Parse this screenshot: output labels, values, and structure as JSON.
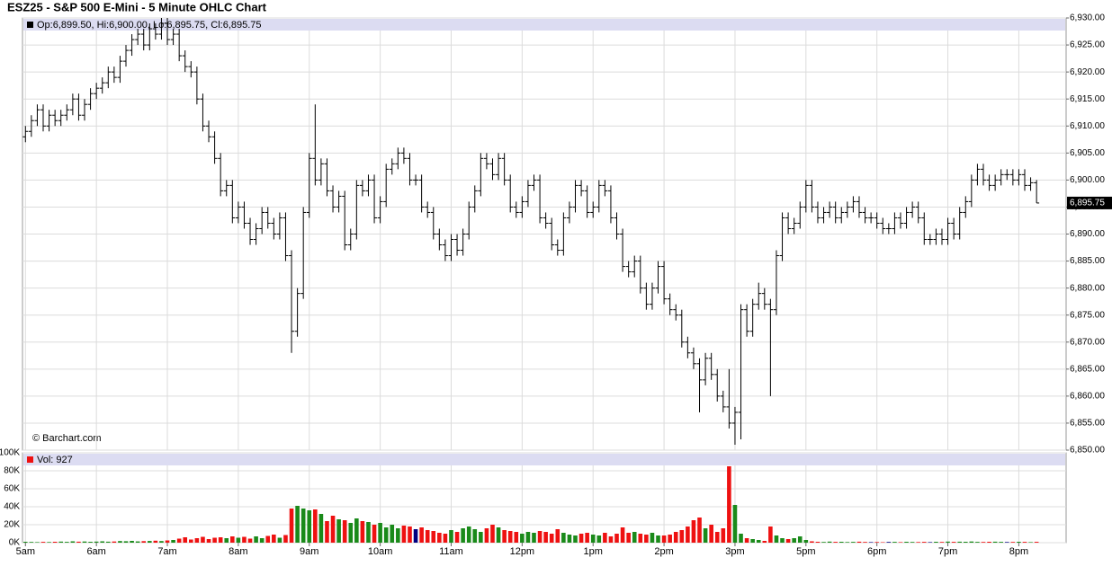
{
  "chart_data": {
    "type": "ohlc",
    "title": "ESZ25 - S&P 500 E-Mini - 5 Minute OHLC Chart",
    "legend_text": "Op:6,899.50, Hi:6,900.00, Lo:6,895.75, Cl:6,895.75",
    "watermark": "© Barchart.com",
    "bar_color": "#000000",
    "grid": true,
    "last_price": {
      "value": 6895.75,
      "label": "6,895.75"
    },
    "xlim": [
      -0.5,
      176
    ],
    "xticks": [
      {
        "value": 0,
        "label": "5am"
      },
      {
        "value": 12,
        "label": "6am"
      },
      {
        "value": 24,
        "label": "7am"
      },
      {
        "value": 36,
        "label": "8am"
      },
      {
        "value": 48,
        "label": "9am"
      },
      {
        "value": 60,
        "label": "10am"
      },
      {
        "value": 72,
        "label": "11am"
      },
      {
        "value": 84,
        "label": "12pm"
      },
      {
        "value": 96,
        "label": "1pm"
      },
      {
        "value": 108,
        "label": "2pm"
      },
      {
        "value": 120,
        "label": "3pm"
      },
      {
        "value": 132,
        "label": "5pm"
      },
      {
        "value": 144,
        "label": "6pm"
      },
      {
        "value": 156,
        "label": "7pm"
      },
      {
        "value": 168,
        "label": "8pm"
      }
    ],
    "ylim": [
      6850,
      6930
    ],
    "yticks": [
      {
        "value": 6850,
        "label": "6,850.00"
      },
      {
        "value": 6855,
        "label": "6,855.00"
      },
      {
        "value": 6860,
        "label": "6,860.00"
      },
      {
        "value": 6865,
        "label": "6,865.00"
      },
      {
        "value": 6870,
        "label": "6,870.00"
      },
      {
        "value": 6875,
        "label": "6,875.00"
      },
      {
        "value": 6880,
        "label": "6,880.00"
      },
      {
        "value": 6885,
        "label": "6,885.00"
      },
      {
        "value": 6890,
        "label": "6,890.00"
      },
      {
        "value": 6895,
        "label": "6,895.00"
      },
      {
        "value": 6900,
        "label": "6,900.00"
      },
      {
        "value": 6905,
        "label": "6,905.00"
      },
      {
        "value": 6910,
        "label": "6,910.00"
      },
      {
        "value": 6915,
        "label": "6,915.00"
      },
      {
        "value": 6920,
        "label": "6,920.00"
      },
      {
        "value": 6925,
        "label": "6,925.00"
      },
      {
        "value": 6930,
        "label": "6,930.00"
      }
    ],
    "open": [
      6908,
      6909,
      6911,
      6913,
      6910,
      6912,
      6911,
      6912,
      6913,
      6915,
      6912,
      6914,
      6916,
      6917,
      6918,
      6920,
      6919,
      6922,
      6924,
      6926,
      6927,
      6925,
      6928,
      6927,
      6929,
      6926,
      6927,
      6923,
      6921,
      6920,
      6915,
      6910,
      6908,
      6904,
      6898,
      6899,
      6893,
      6895,
      6892,
      6889,
      6891,
      6894,
      6892,
      6890,
      6893,
      6886,
      6872,
      6879,
      6894,
      6904,
      6900,
      6903,
      6898,
      6895,
      6897,
      6888,
      6890,
      6899,
      6898,
      6900,
      6893,
      6896,
      6902,
      6903,
      6905,
      6904,
      6900,
      6900,
      6895,
      6894,
      6890,
      6888,
      6886,
      6889,
      6887,
      6890,
      6895,
      6898,
      6904,
      6903,
      6901,
      6904,
      6900,
      6895,
      6894,
      6896,
      6899,
      6900,
      6893,
      6892,
      6888,
      6887,
      6893,
      6895,
      6899,
      6898,
      6894,
      6895,
      6899,
      6898,
      6893,
      6890,
      6884,
      6883,
      6885,
      6880,
      6877,
      6880,
      6884,
      6878,
      6876,
      6875,
      6870,
      6868,
      6866,
      6863,
      6867,
      6864,
      6860,
      6858,
      6855,
      6857,
      6876,
      6872,
      6877,
      6879,
      6877,
      6876,
      6886,
      6893,
      6891,
      6892,
      6895,
      6899,
      6895,
      6893,
      6894,
      6895,
      6893,
      6894,
      6895,
      6896,
      6894,
      6893,
      6893,
      6892,
      6891,
      6891,
      6893,
      6892,
      6894,
      6895,
      6893,
      6889,
      6889,
      6890,
      6889,
      6892,
      6890,
      6894,
      6896,
      6900,
      6902,
      6900,
      6899,
      6900,
      6901,
      6901,
      6900,
      6901,
      6899,
      6899.5
    ],
    "high": [
      6910,
      6912,
      6914,
      6914,
      6913,
      6913,
      6913,
      6914,
      6916,
      6916,
      6915,
      6917,
      6918,
      6919,
      6921,
      6921,
      6923,
      6925,
      6927,
      6928,
      6928,
      6929,
      6929,
      6930,
      6930,
      6928,
      6928,
      6924,
      6922,
      6921,
      6916,
      6911,
      6909,
      6905,
      6900,
      6900,
      6896,
      6896,
      6893,
      6892,
      6895,
      6895,
      6893,
      6894,
      6894,
      6887,
      6880,
      6895,
      6905,
      6914,
      6904,
      6904,
      6899,
      6898,
      6898,
      6891,
      6900,
      6900,
      6901,
      6901,
      6897,
      6903,
      6904,
      6906,
      6906,
      6905,
      6901,
      6901,
      6896,
      6895,
      6891,
      6889,
      6890,
      6890,
      6891,
      6896,
      6899,
      6905,
      6905,
      6904,
      6905,
      6905,
      6901,
      6896,
      6897,
      6900,
      6901,
      6901,
      6894,
      6893,
      6889,
      6894,
      6896,
      6900,
      6900,
      6899,
      6896,
      6900,
      6900,
      6899,
      6894,
      6891,
      6885,
      6886,
      6886,
      6881,
      6881,
      6885,
      6885,
      6879,
      6877,
      6876,
      6871,
      6869,
      6867,
      6868,
      6868,
      6865,
      6861,
      6865,
      6858,
      6877,
      6877,
      6878,
      6881,
      6880,
      6878,
      6887,
      6894,
      6894,
      6893,
      6896,
      6900,
      6900,
      6896,
      6895,
      6896,
      6896,
      6895,
      6896,
      6897,
      6897,
      6895,
      6894,
      6894,
      6893,
      6892,
      6894,
      6894,
      6895,
      6896,
      6896,
      6894,
      6890,
      6891,
      6891,
      6893,
      6893,
      6895,
      6897,
      6901,
      6903,
      6903,
      6901,
      6901,
      6902,
      6902,
      6902,
      6902,
      6902,
      6900.5,
      6900
    ],
    "low": [
      6907,
      6908,
      6910,
      6909,
      6909,
      6910,
      6910,
      6911,
      6912,
      6911,
      6911,
      6913,
      6915,
      6916,
      6917,
      6918,
      6918,
      6921,
      6923,
      6925,
      6924,
      6924,
      6926,
      6926,
      6925,
      6925,
      6922,
      6920,
      6919,
      6914,
      6909,
      6907,
      6903,
      6897,
      6897,
      6892,
      6892,
      6891,
      6888,
      6888,
      6890,
      6891,
      6889,
      6889,
      6885,
      6868,
      6871,
      6878,
      6893,
      6899,
      6899,
      6897,
      6894,
      6894,
      6887,
      6887,
      6889,
      6897,
      6897,
      6892,
      6892,
      6895,
      6901,
      6902,
      6903,
      6899,
      6899,
      6894,
      6893,
      6889,
      6887,
      6885,
      6885,
      6886,
      6886,
      6889,
      6894,
      6897,
      6902,
      6900,
      6900,
      6899,
      6894,
      6893,
      6893,
      6895,
      6898,
      6892,
      6891,
      6887,
      6886,
      6886,
      6892,
      6894,
      6897,
      6893,
      6893,
      6894,
      6897,
      6892,
      6889,
      6883,
      6882,
      6882,
      6879,
      6876,
      6876,
      6879,
      6877,
      6875,
      6874,
      6869,
      6867,
      6865,
      6857,
      6862,
      6863,
      6859,
      6857,
      6854,
      6851,
      6852,
      6871,
      6871,
      6876,
      6876,
      6860,
      6875,
      6885,
      6890,
      6890,
      6891,
      6894,
      6894,
      6892,
      6892,
      6893,
      6892,
      6892,
      6893,
      6894,
      6893,
      6892,
      6892,
      6891,
      6890,
      6890,
      6890,
      6891,
      6891,
      6893,
      6892,
      6888,
      6888,
      6888,
      6888,
      6888,
      6889,
      6889,
      6893,
      6895,
      6899,
      6899,
      6898,
      6898,
      6899,
      6900,
      6899,
      6899,
      6898,
      6898,
      6895.75
    ],
    "close": [
      6909,
      6911,
      6913,
      6910,
      6912,
      6911,
      6912,
      6913,
      6915,
      6912,
      6914,
      6916,
      6917,
      6918,
      6920,
      6919,
      6922,
      6924,
      6926,
      6927,
      6925,
      6928,
      6927,
      6929,
      6926,
      6927,
      6923,
      6921,
      6920,
      6915,
      6910,
      6908,
      6904,
      6898,
      6899,
      6893,
      6895,
      6892,
      6889,
      6891,
      6894,
      6892,
      6890,
      6893,
      6886,
      6872,
      6879,
      6894,
      6904,
      6900,
      6903,
      6898,
      6895,
      6897,
      6888,
      6890,
      6899,
      6898,
      6900,
      6893,
      6896,
      6902,
      6903,
      6905,
      6904,
      6900,
      6900,
      6895,
      6894,
      6890,
      6888,
      6886,
      6889,
      6887,
      6890,
      6895,
      6898,
      6904,
      6903,
      6901,
      6904,
      6900,
      6895,
      6894,
      6896,
      6899,
      6900,
      6893,
      6892,
      6888,
      6887,
      6893,
      6895,
      6899,
      6898,
      6894,
      6895,
      6899,
      6898,
      6893,
      6890,
      6884,
      6883,
      6885,
      6880,
      6877,
      6880,
      6884,
      6878,
      6876,
      6875,
      6870,
      6868,
      6866,
      6863,
      6867,
      6864,
      6860,
      6858,
      6855,
      6857,
      6876,
      6872,
      6877,
      6879,
      6877,
      6876,
      6886,
      6893,
      6891,
      6892,
      6895,
      6899,
      6895,
      6893,
      6894,
      6895,
      6893,
      6894,
      6895,
      6896,
      6894,
      6893,
      6893,
      6892,
      6891,
      6891,
      6893,
      6892,
      6894,
      6895,
      6893,
      6889,
      6889,
      6890,
      6889,
      6892,
      6890,
      6894,
      6896,
      6900,
      6902,
      6900,
      6899,
      6900,
      6901,
      6901,
      6900,
      6901,
      6899,
      6899.5,
      6895.75
    ],
    "volume": {
      "title": "Vol: 927",
      "up_color": "#1a8a1a",
      "down_color": "#ee1111",
      "flat_color": "#000080",
      "ylim": [
        0,
        100000
      ],
      "yticks": [
        {
          "value": 0,
          "label": "0K"
        },
        {
          "value": 20000,
          "label": "20K"
        },
        {
          "value": 40000,
          "label": "40K"
        },
        {
          "value": 60000,
          "label": "60K"
        },
        {
          "value": 80000,
          "label": "80K"
        },
        {
          "value": 100000,
          "label": "100K"
        }
      ],
      "values": [
        1000,
        800,
        600,
        900,
        700,
        1000,
        1200,
        900,
        1500,
        1100,
        1300,
        1000,
        1200,
        1500,
        1100,
        1300,
        1800,
        1600,
        2000,
        1400,
        1700,
        1900,
        2200,
        1800,
        2500,
        3000,
        4500,
        6000,
        3500,
        5000,
        6500,
        4000,
        5500,
        6000,
        5000,
        7000,
        5500,
        6500,
        4500,
        7000,
        5000,
        7500,
        9000,
        5500,
        8500,
        38000,
        41000,
        38000,
        36000,
        37000,
        32000,
        24000,
        30000,
        26000,
        25000,
        22000,
        27000,
        24000,
        23000,
        20000,
        22000,
        17000,
        20000,
        16000,
        19000,
        18000,
        15000,
        17000,
        14000,
        13000,
        11000,
        10000,
        14000,
        12000,
        16000,
        18000,
        15000,
        12000,
        16000,
        20000,
        17000,
        14000,
        13000,
        12000,
        10000,
        12000,
        11000,
        13000,
        12000,
        10000,
        15000,
        11000,
        9000,
        8000,
        10000,
        11000,
        9000,
        8000,
        11000,
        7000,
        10000,
        17000,
        11000,
        12000,
        10000,
        9000,
        11000,
        8000,
        8000,
        9000,
        12000,
        14000,
        18000,
        25000,
        28000,
        16000,
        20000,
        12000,
        16000,
        85000,
        42000,
        10000,
        5000,
        4000,
        3000,
        2000,
        18000,
        8000,
        5000,
        4000,
        5000,
        7000,
        3000,
        1500,
        1000,
        800,
        1200,
        900,
        1000,
        700,
        900,
        1100,
        800,
        600,
        700,
        500,
        800,
        900,
        600,
        1000,
        800,
        700,
        900,
        600,
        1000,
        800,
        1200,
        900,
        1100,
        1000,
        1300,
        900,
        800,
        1000,
        1100,
        900,
        700,
        800,
        1000,
        900,
        600,
        927
      ]
    }
  }
}
